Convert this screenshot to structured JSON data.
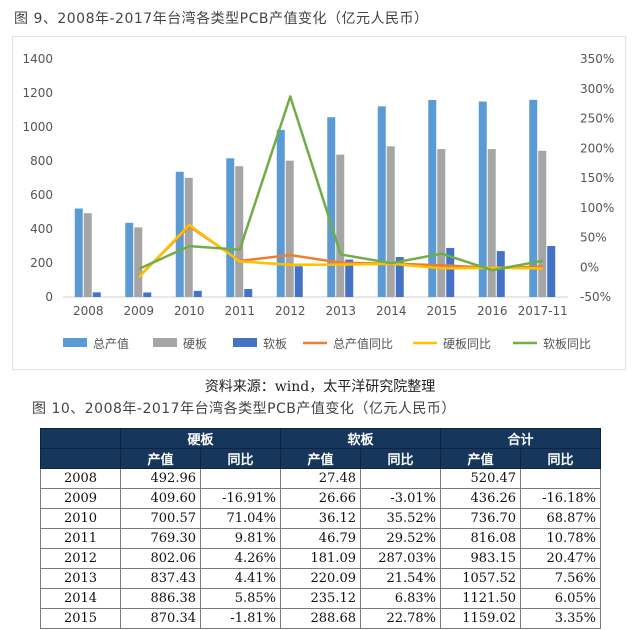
{
  "figure9_title": "图 9、2008年-2017年台湾各类型PCB产值变化（亿元人民币）",
  "source": "资料来源：wind，太平洋研究院整理",
  "figure10_title": "图 10、2008年-2017年台湾各类型PCB产值变化（亿元人民币）",
  "colors": {
    "total": "#5b9bd5",
    "hard": "#a5a5a5",
    "soft": "#4472c4",
    "total_yoy": "#ed7d31",
    "hard_yoy": "#ffc000",
    "soft_yoy": "#70ad47",
    "table_header": "#16365c"
  },
  "chart_data": {
    "type": "bar",
    "categories": [
      "2008",
      "2009",
      "2010",
      "2011",
      "2012",
      "2013",
      "2014",
      "2015",
      "2016",
      "2017-11"
    ],
    "ylim": [
      0,
      1400
    ],
    "yticks": [
      "0",
      "200",
      "400",
      "600",
      "800",
      "1000",
      "1200",
      "1400"
    ],
    "y2lim": [
      -50,
      350
    ],
    "y2ticks": [
      "-50%",
      "0%",
      "50%",
      "100%",
      "150%",
      "200%",
      "250%",
      "300%",
      "350%"
    ],
    "grid": false,
    "legend_position": "bottom",
    "series": [
      {
        "name": "总产值",
        "kind": "bar",
        "axis": "left",
        "values": [
          520.47,
          436.26,
          736.7,
          816.08,
          983.15,
          1057.52,
          1121.5,
          1159.02,
          1150,
          1160
        ]
      },
      {
        "name": "硬板",
        "kind": "bar",
        "axis": "left",
        "values": [
          492.96,
          409.6,
          700.57,
          769.3,
          802.06,
          837.43,
          886.38,
          870.34,
          870,
          860
        ]
      },
      {
        "name": "软板",
        "kind": "bar",
        "axis": "left",
        "values": [
          27.48,
          26.66,
          36.12,
          46.79,
          181.09,
          220.09,
          235.12,
          288.68,
          270,
          300
        ]
      },
      {
        "name": "总产值同比",
        "kind": "line",
        "axis": "right",
        "values": [
          null,
          -16.18,
          68.87,
          10.78,
          20.47,
          7.56,
          6.05,
          3.35,
          -1,
          1
        ]
      },
      {
        "name": "硬板同比",
        "kind": "line",
        "axis": "right",
        "values": [
          null,
          -16.91,
          71.04,
          9.81,
          4.26,
          4.41,
          5.85,
          -1.81,
          -1,
          -2
        ]
      },
      {
        "name": "软板同比",
        "kind": "line",
        "axis": "right",
        "values": [
          null,
          -3.01,
          35.52,
          29.52,
          287.03,
          21.54,
          6.83,
          22.78,
          -5,
          11
        ]
      }
    ]
  },
  "table": {
    "groups": [
      "硬板",
      "软板",
      "合计"
    ],
    "subheaders": [
      "产值",
      "同比",
      "产值",
      "同比",
      "产值",
      "同比"
    ],
    "rows": [
      [
        "2008",
        "492.96",
        "",
        "27.48",
        "",
        "520.47",
        ""
      ],
      [
        "2009",
        "409.60",
        "-16.91%",
        "26.66",
        "-3.01%",
        "436.26",
        "-16.18%"
      ],
      [
        "2010",
        "700.57",
        "71.04%",
        "36.12",
        "35.52%",
        "736.70",
        "68.87%"
      ],
      [
        "2011",
        "769.30",
        "9.81%",
        "46.79",
        "29.52%",
        "816.08",
        "10.78%"
      ],
      [
        "2012",
        "802.06",
        "4.26%",
        "181.09",
        "287.03%",
        "983.15",
        "20.47%"
      ],
      [
        "2013",
        "837.43",
        "4.41%",
        "220.09",
        "21.54%",
        "1057.52",
        "7.56%"
      ],
      [
        "2014",
        "886.38",
        "5.85%",
        "235.12",
        "6.83%",
        "1121.50",
        "6.05%"
      ],
      [
        "2015",
        "870.34",
        "-1.81%",
        "288.68",
        "22.78%",
        "1159.02",
        "3.35%"
      ]
    ]
  }
}
